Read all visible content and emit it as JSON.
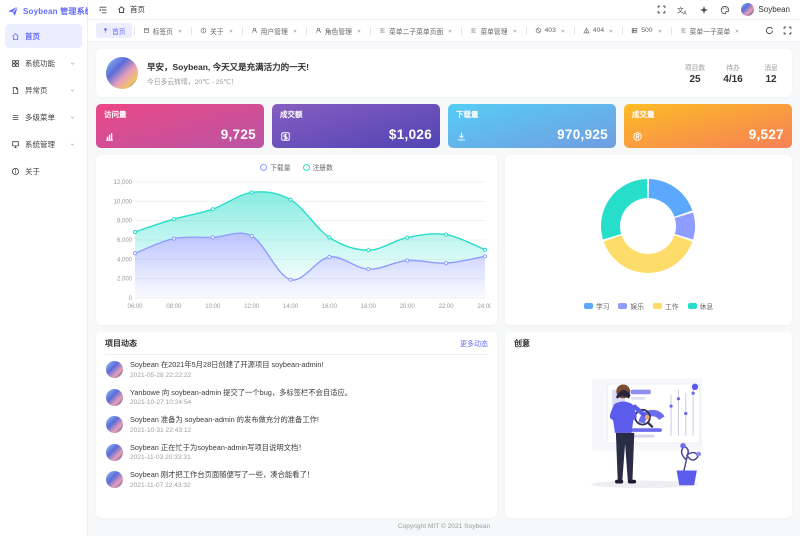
{
  "app": {
    "title": "Soybean 管理系统"
  },
  "colors": {
    "primary": "#646cff",
    "bg": "#f6f8f9"
  },
  "sidebar": {
    "items": [
      {
        "label": "首页",
        "icon": "home",
        "active": true,
        "expandable": false
      },
      {
        "label": "系统功能",
        "icon": "grid",
        "active": false,
        "expandable": true
      },
      {
        "label": "异常页",
        "icon": "file",
        "active": false,
        "expandable": true
      },
      {
        "label": "多级菜单",
        "icon": "list",
        "active": false,
        "expandable": true
      },
      {
        "label": "系统管理",
        "icon": "monitor",
        "active": false,
        "expandable": true
      },
      {
        "label": "关于",
        "icon": "info",
        "active": false,
        "expandable": false
      }
    ]
  },
  "header": {
    "breadcrumb": {
      "label": "首页"
    },
    "icons": [
      "fullscreen",
      "language",
      "theme",
      "palette"
    ],
    "user": {
      "name": "Soybean"
    }
  },
  "tabs": {
    "items": [
      {
        "label": "首页",
        "icon": "pin",
        "active": true,
        "closable": false
      },
      {
        "label": "标签页",
        "icon": "tag",
        "active": false,
        "closable": true
      },
      {
        "label": "关于",
        "icon": "info",
        "active": false,
        "closable": true
      },
      {
        "label": "用户管理",
        "icon": "user",
        "active": false,
        "closable": true
      },
      {
        "label": "角色管理",
        "icon": "user",
        "active": false,
        "closable": true
      },
      {
        "label": "菜单二子菜单页面",
        "icon": "menu",
        "active": false,
        "closable": true
      },
      {
        "label": "菜单管理",
        "icon": "menu",
        "active": false,
        "closable": true
      },
      {
        "label": "403",
        "icon": "ban",
        "active": false,
        "closable": true
      },
      {
        "label": "404",
        "icon": "warn",
        "active": false,
        "closable": true
      },
      {
        "label": "500",
        "icon": "server",
        "active": false,
        "closable": true
      },
      {
        "label": "菜单一子菜单",
        "icon": "menu",
        "active": false,
        "closable": true
      }
    ]
  },
  "greeting": {
    "title": "早安，Soybean, 今天又是充满活力的一天!",
    "subtitle": "今日多云转晴，20℃ - 25℃！",
    "stats": [
      {
        "label": "项目数",
        "value": "25"
      },
      {
        "label": "待办",
        "value": "4/16"
      },
      {
        "label": "消息",
        "value": "12"
      }
    ]
  },
  "stat_cards": [
    {
      "label": "访问量",
      "value": "9,725",
      "icon": "bars",
      "from": "#ec4786",
      "to": "#b955a4"
    },
    {
      "label": "成交额",
      "value": "$1,026",
      "icon": "dollar",
      "from": "#865ec0",
      "to": "#5144b4"
    },
    {
      "label": "下载量",
      "value": "970,925",
      "icon": "download",
      "from": "#56cdf3",
      "to": "#719de3"
    },
    {
      "label": "成交量",
      "value": "9,527",
      "icon": "trademark",
      "from": "#fcbc25",
      "to": "#f68057"
    }
  ],
  "chart_data": [
    {
      "type": "area",
      "stacked": true,
      "x": [
        "06:00",
        "08:00",
        "10:00",
        "12:00",
        "14:00",
        "16:00",
        "18:00",
        "20:00",
        "22:00",
        "24:00"
      ],
      "series": [
        {
          "name": "下载量",
          "color": "#8e9dff",
          "values": [
            4623,
            6145,
            6268,
            6411,
            1890,
            4251,
            2978,
            3880,
            3606,
            4311
          ]
        },
        {
          "name": "注册数",
          "color": "#26deca",
          "values": [
            2208,
            2016,
            2916,
            4512,
            8281,
            2008,
            1963,
            2367,
            2956,
            678
          ]
        }
      ],
      "ylim": [
        0,
        12000
      ],
      "ytick": 2000,
      "grid": true,
      "legend_position": "top"
    },
    {
      "type": "pie",
      "donut": true,
      "labels": [
        "学习",
        "娱乐",
        "工作",
        "休息"
      ],
      "values": [
        20,
        10,
        40,
        30
      ],
      "colors": [
        "#5da8ff",
        "#8e9dff",
        "#fedc69",
        "#26deca"
      ],
      "legend_position": "bottom"
    }
  ],
  "news": {
    "title": "项目动态",
    "more_label": "更多动态",
    "items": [
      {
        "text": "Soybean 在2021年5月28日创建了开源项目 soybean-admin!",
        "time": "2021-05-28 22:22:22"
      },
      {
        "text": "Yanbowe 向 soybean-admin 提交了一个bug，多标签栏不会自适应。",
        "time": "2021-10-27 10:24:54"
      },
      {
        "text": "Soybean 准备为 soybean-admin 的发布做充分的准备工作!",
        "time": "2021-10-31 22:43:12"
      },
      {
        "text": "Soybean 正在忙于为soybean-admin写项目说明文档！",
        "time": "2021-11-03 20:33:31"
      },
      {
        "text": "Soybean 刚才把工作台页面随便写了一些，凑合能看了！",
        "time": "2021-11-07 22:43:32"
      }
    ]
  },
  "creativity": {
    "title": "创意"
  },
  "footer": {
    "text": "Copyright MIT © 2021 Soybean"
  }
}
